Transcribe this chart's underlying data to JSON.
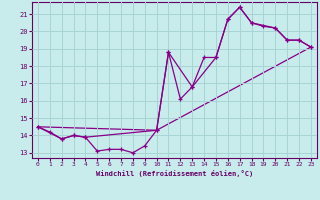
{
  "xlabel": "Windchill (Refroidissement éolien,°C)",
  "bg_color": "#c8ecec",
  "grid_color": "#a8d4d4",
  "line_color": "#880088",
  "xlim": [
    -0.5,
    23.5
  ],
  "ylim": [
    12.7,
    21.7
  ],
  "yticks": [
    13,
    14,
    15,
    16,
    17,
    18,
    19,
    20,
    21
  ],
  "xticks": [
    0,
    1,
    2,
    3,
    4,
    5,
    6,
    7,
    8,
    9,
    10,
    11,
    12,
    13,
    14,
    15,
    16,
    17,
    18,
    19,
    20,
    21,
    22,
    23
  ],
  "series1_x": [
    0,
    1,
    2,
    3,
    4,
    5,
    6,
    7,
    8,
    9,
    10,
    11,
    12,
    13,
    14,
    15,
    16,
    17,
    18,
    19,
    20,
    21,
    22,
    23
  ],
  "series1_y": [
    14.5,
    14.2,
    13.8,
    14.0,
    13.9,
    13.1,
    13.2,
    13.2,
    13.0,
    13.4,
    14.3,
    18.8,
    16.1,
    16.8,
    18.5,
    18.5,
    20.7,
    21.4,
    20.5,
    20.3,
    20.2,
    19.5,
    19.5,
    19.1
  ],
  "series2_x": [
    0,
    2,
    3,
    4,
    10,
    11,
    13,
    15,
    16,
    17,
    18,
    20,
    21,
    22,
    23
  ],
  "series2_y": [
    14.5,
    13.8,
    14.0,
    13.9,
    14.3,
    18.8,
    16.8,
    18.5,
    20.7,
    21.4,
    20.5,
    20.2,
    19.5,
    19.5,
    19.1
  ],
  "series3_x": [
    0,
    10,
    23
  ],
  "series3_y": [
    14.5,
    14.3,
    19.1
  ]
}
